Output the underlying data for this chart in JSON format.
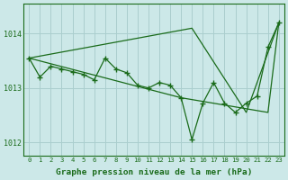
{
  "x": [
    0,
    1,
    2,
    3,
    4,
    5,
    6,
    7,
    8,
    9,
    10,
    11,
    12,
    13,
    14,
    15,
    16,
    17,
    18,
    19,
    20,
    21,
    22,
    23
  ],
  "y_marked": [
    1013.55,
    1013.2,
    1013.4,
    1013.35,
    1013.3,
    1013.25,
    1013.15,
    1013.55,
    1013.35,
    1013.28,
    1013.05,
    1013.0,
    1013.1,
    1013.05,
    1012.82,
    1012.05,
    1012.72,
    1013.1,
    1012.72,
    1012.55,
    1012.72,
    1012.85,
    1013.75,
    1014.2
  ],
  "bg_color": "#cce8e8",
  "grid_color": "#aacece",
  "line_color": "#1a6b1a",
  "xlabel": "Graphe pression niveau de la mer (hPa)",
  "yticks": [
    1012,
    1013,
    1014
  ],
  "xlim": [
    -0.5,
    23.5
  ],
  "ylim": [
    1011.75,
    1014.55
  ]
}
